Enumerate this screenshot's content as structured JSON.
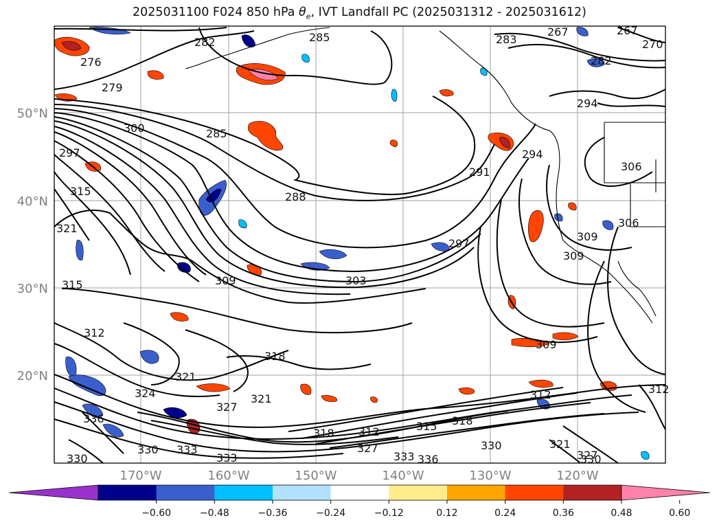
{
  "title": {
    "prefix": "2025031100 F024 850 hPa ",
    "theta": "θ",
    "theta_sub": "e",
    "suffix": ", IVT Landfall PC (2025031312 - 2025031612)"
  },
  "lat_labels": [
    "50°N",
    "40°N",
    "30°N",
    "20°N"
  ],
  "lon_labels": [
    "170°W",
    "160°W",
    "150°W",
    "140°W",
    "130°W",
    "120°W"
  ],
  "colorbar": {
    "colors": [
      "#9932CC",
      "#00008B",
      "#3A5FCD",
      "#00BFFF",
      "#B2E2FF",
      "#FFFFFF",
      "#FFEC8B",
      "#FFA500",
      "#FF4500",
      "#B22222",
      "#FF82AB"
    ],
    "tick_labels": [
      "−0.60",
      "−0.48",
      "−0.36",
      "−0.24",
      "−0.12",
      "0.12",
      "0.24",
      "0.36",
      "0.48",
      "0.60"
    ]
  },
  "contour_labels": [
    "267",
    "267",
    "270",
    "276",
    "279",
    "282",
    "282",
    "283",
    "285",
    "285",
    "288",
    "291",
    "294",
    "294",
    "297",
    "297",
    "300",
    "303",
    "306",
    "306",
    "309",
    "309",
    "309",
    "309",
    "312",
    "312",
    "312",
    "315",
    "315",
    "318",
    "318",
    "321",
    "321",
    "321",
    "321",
    "324",
    "327",
    "330",
    "330",
    "330",
    "333",
    "333",
    "336",
    "336",
    "327",
    "318",
    "315",
    "312"
  ]
}
